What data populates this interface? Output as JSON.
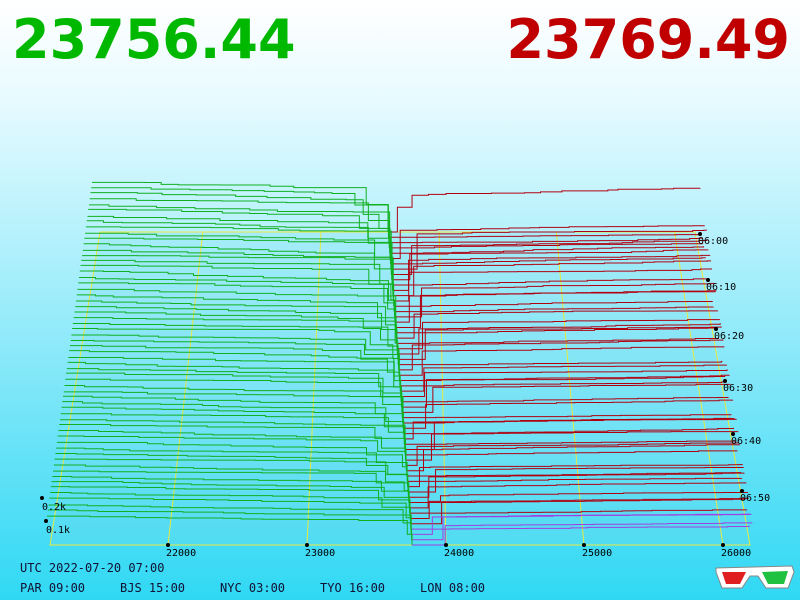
{
  "header": {
    "bid": "23756.44",
    "ask": "23769.49"
  },
  "price_axis": {
    "ticks": [
      "22000",
      "23000",
      "24000",
      "25000",
      "26000"
    ]
  },
  "time_axis": {
    "ticks": [
      "06:00",
      "06:10",
      "06:20",
      "06:30",
      "06:40",
      "06:50"
    ]
  },
  "depth_axis": {
    "ticks": [
      "0.2k",
      "0.1k"
    ]
  },
  "footer": {
    "utc": "UTC 2022-07-20 07:00",
    "zones": [
      "PAR 09:00",
      "BJS 15:00",
      "NYC 03:00",
      "TYO 16:00",
      "LON 08:00"
    ]
  }
}
